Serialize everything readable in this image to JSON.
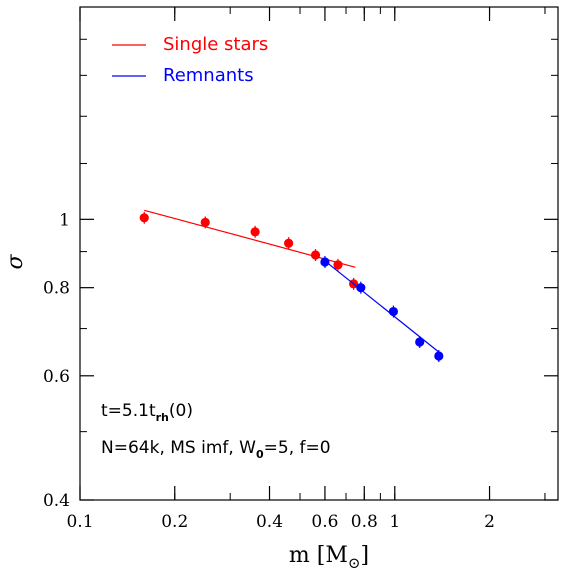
{
  "chart_data": {
    "type": "scatter",
    "xlabel": {
      "main": "m",
      "unit_prefix": "[M",
      "unit_sub": "⊙",
      "unit_suffix": "]"
    },
    "ylabel": "σ",
    "x_scale": "log",
    "y_scale": "log",
    "xlim": [
      0.1,
      3.3
    ],
    "ylim": [
      0.4,
      2.0
    ],
    "x_ticks": [
      {
        "value": 0.1,
        "label": "0.1"
      },
      {
        "value": 0.2,
        "label": "0.2"
      },
      {
        "value": 0.4,
        "label": "0.4"
      },
      {
        "value": 0.6,
        "label": "0.6"
      },
      {
        "value": 0.8,
        "label": "0.8"
      },
      {
        "value": 1,
        "label": "1"
      },
      {
        "value": 2,
        "label": "2"
      }
    ],
    "y_ticks": [
      {
        "value": 0.4,
        "label": "0.4"
      },
      {
        "value": 0.6,
        "label": "0.6"
      },
      {
        "value": 0.8,
        "label": "0.8"
      },
      {
        "value": 1,
        "label": "1"
      }
    ],
    "series": [
      {
        "name": "Single stars",
        "color": "#ff0000",
        "points": [
          {
            "x": 0.16,
            "y": 1.005
          },
          {
            "x": 0.25,
            "y": 0.99
          },
          {
            "x": 0.36,
            "y": 0.96
          },
          {
            "x": 0.46,
            "y": 0.925
          },
          {
            "x": 0.56,
            "y": 0.89
          },
          {
            "x": 0.66,
            "y": 0.862
          },
          {
            "x": 0.74,
            "y": 0.81
          }
        ],
        "fit": {
          "x": [
            0.16,
            0.75
          ],
          "y": [
            1.03,
            0.855
          ]
        }
      },
      {
        "name": "Remnants",
        "color": "#0000ff",
        "points": [
          {
            "x": 0.6,
            "y": 0.87
          },
          {
            "x": 0.78,
            "y": 0.8
          },
          {
            "x": 0.99,
            "y": 0.74
          },
          {
            "x": 1.2,
            "y": 0.67
          },
          {
            "x": 1.38,
            "y": 0.64
          }
        ],
        "fit": {
          "x": [
            0.6,
            1.4
          ],
          "y": [
            0.873,
            0.645
          ]
        }
      }
    ],
    "annotations": [
      {
        "main": "t=5.1t",
        "sub": "rh",
        "tail": "(0)"
      },
      {
        "main": "N=64k, MS imf, W",
        "sub": "0",
        "tail": "=5, f=0"
      }
    ],
    "legend_position": "top-left"
  }
}
